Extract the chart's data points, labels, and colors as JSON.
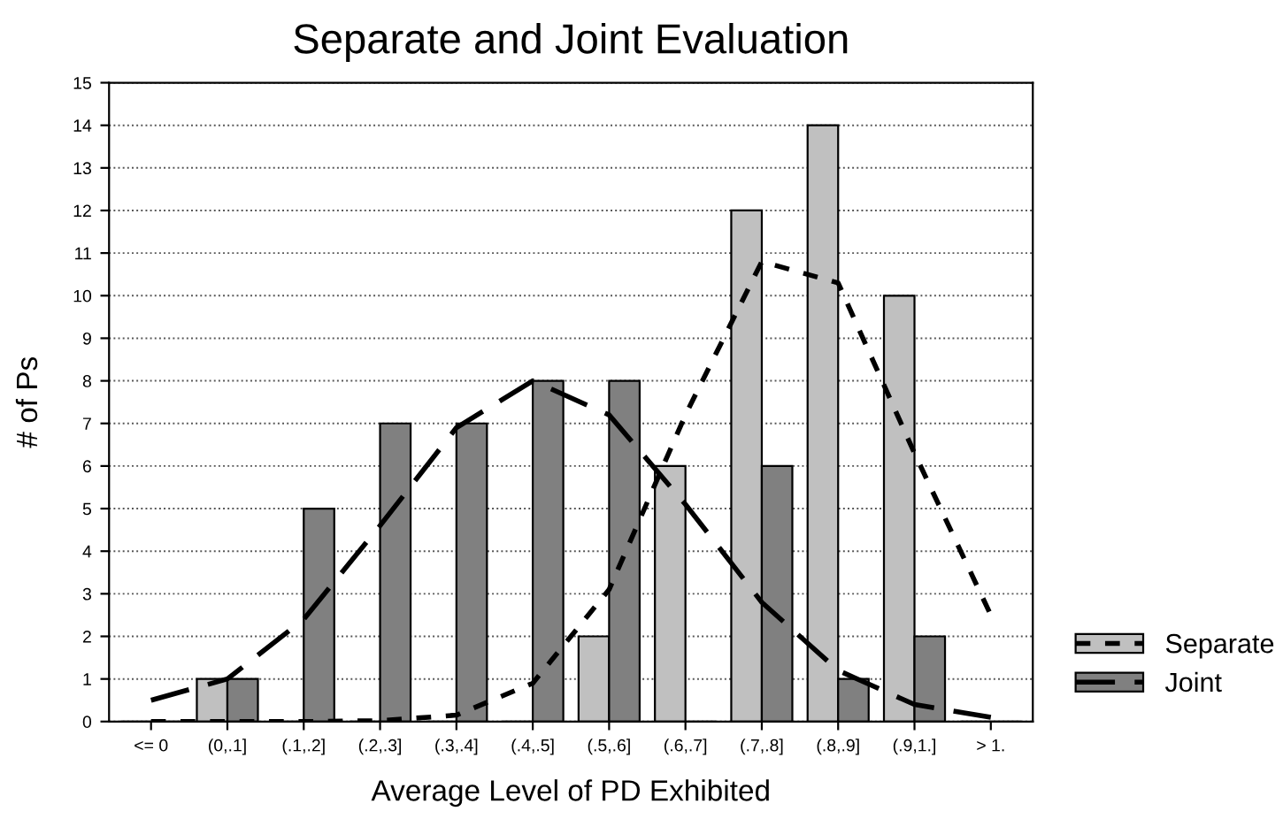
{
  "chart_data": {
    "type": "bar",
    "title": "Separate and Joint Evaluation",
    "xlabel": "Average Level of PD Exhibited",
    "ylabel": "# of Ps",
    "categories": [
      "<= 0",
      "(0,.1]",
      "(.1,.2]",
      "(.2,.3]",
      "(.3,.4]",
      "(.4,.5]",
      "(.5,.6]",
      "(.6,.7]",
      "(.7,.8]",
      "(.8,.9]",
      "(.9,1.]",
      "> 1."
    ],
    "series": [
      {
        "name": "Separate",
        "color": "#c0c0c0",
        "values": [
          0,
          1,
          0,
          0,
          0,
          0,
          2,
          6,
          12,
          14,
          10,
          0
        ]
      },
      {
        "name": "Joint",
        "color": "#808080",
        "values": [
          0,
          1,
          5,
          7,
          7,
          8,
          8,
          0,
          6,
          1,
          2,
          0
        ]
      },
      {
        "type": "line",
        "color": "#000000",
        "line_style": "dotted",
        "values": [
          0,
          0,
          0,
          0.02,
          0.15,
          0.9,
          3.1,
          7.2,
          10.8,
          10.3,
          6.3,
          2.5
        ]
      },
      {
        "type": "line",
        "color": "#000000",
        "line_style": "dashed",
        "values": [
          0.5,
          1.0,
          2.4,
          4.6,
          6.9,
          8.0,
          7.2,
          5.1,
          2.8,
          1.2,
          0.4,
          0.1
        ]
      }
    ],
    "ylim": [
      0,
      15
    ],
    "yticks": [
      0,
      1,
      2,
      3,
      4,
      5,
      6,
      7,
      8,
      9,
      10,
      11,
      12,
      13,
      14,
      15
    ],
    "grid": "y",
    "legend": "bottom right"
  }
}
